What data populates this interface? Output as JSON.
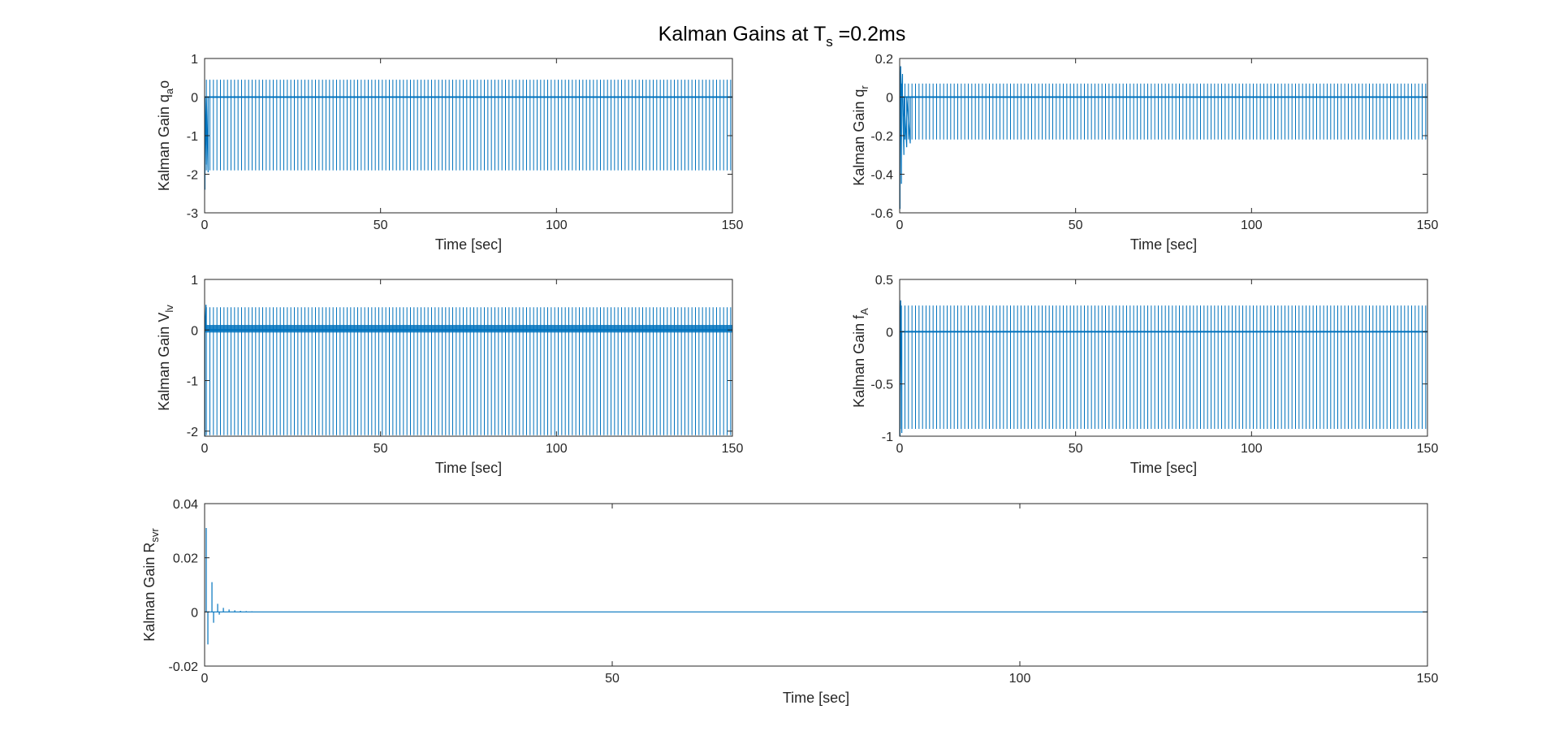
{
  "figure": {
    "title": {
      "main": "Kalman Gains at T",
      "sub": "s",
      "suffix": " =0.2ms"
    }
  },
  "chart_data": [
    {
      "type": "line",
      "title": "",
      "xlabel": "Time [sec]",
      "ylabel": {
        "main": "Kalman Gain q",
        "sub": "a",
        "suffix": "o"
      },
      "xlim": [
        0,
        150
      ],
      "ylim": [
        -3,
        1
      ],
      "xticks": [
        0,
        50,
        100,
        150
      ],
      "yticks": [
        -3,
        -2,
        -1,
        0,
        1
      ],
      "grid": false,
      "series": [
        {
          "color": "#0072BD",
          "pattern": "periodic-spikes",
          "x_start": 0,
          "x_end": 150,
          "spike_count": 150,
          "baseline": 0,
          "spike_high": 0.45,
          "spike_low": -1.9,
          "initial_transient": [
            {
              "x": 0.1,
              "y": -2.4
            },
            {
              "x": 0.5,
              "y": -1.75
            },
            {
              "x": 1.0,
              "y": -1.95
            }
          ]
        }
      ]
    },
    {
      "type": "line",
      "title": "",
      "xlabel": "Time [sec]",
      "ylabel": {
        "main": "Kalman Gain q",
        "sub": "r",
        "suffix": ""
      },
      "xlim": [
        0,
        150
      ],
      "ylim": [
        -0.6,
        0.2
      ],
      "xticks": [
        0,
        50,
        100,
        150
      ],
      "yticks": [
        -0.6,
        -0.4,
        -0.2,
        0,
        0.2
      ],
      "grid": false,
      "series": [
        {
          "color": "#0072BD",
          "pattern": "periodic-spikes",
          "x_start": 0,
          "x_end": 150,
          "spike_count": 150,
          "baseline": 0,
          "spike_high": 0.07,
          "spike_low": -0.22,
          "initial_transient": [
            {
              "x": 0.1,
              "y": -0.58
            },
            {
              "x": 0.3,
              "y": 0.16
            },
            {
              "x": 0.5,
              "y": -0.45
            },
            {
              "x": 0.8,
              "y": 0.12
            },
            {
              "x": 1.2,
              "y": -0.3
            },
            {
              "x": 2.0,
              "y": -0.26
            },
            {
              "x": 3.0,
              "y": -0.24
            }
          ]
        }
      ]
    },
    {
      "type": "line",
      "title": "",
      "xlabel": "Time [sec]",
      "ylabel": {
        "main": "Kalman Gain V",
        "sub": "lv",
        "suffix": ""
      },
      "xlim": [
        0,
        150
      ],
      "ylim": [
        -2.1,
        1
      ],
      "xticks": [
        0,
        50,
        100,
        150
      ],
      "yticks": [
        -2,
        -1,
        0,
        1
      ],
      "grid": false,
      "series": [
        {
          "color": "#0072BD",
          "pattern": "periodic-spikes",
          "x_start": 0,
          "x_end": 150,
          "spike_count": 150,
          "baseline": 0,
          "spike_high": 0.45,
          "spike_low": -2.08,
          "baseline_band": [
            -0.05,
            0.1
          ],
          "initial_transient": [
            {
              "x": 0.1,
              "y": -2.1
            },
            {
              "x": 0.4,
              "y": 0.5
            }
          ]
        }
      ]
    },
    {
      "type": "line",
      "title": "",
      "xlabel": "Time [sec]",
      "ylabel": {
        "main": "Kalman Gain f",
        "sub": "A",
        "suffix": ""
      },
      "xlim": [
        0,
        150
      ],
      "ylim": [
        -1,
        0.5
      ],
      "xticks": [
        0,
        50,
        100,
        150
      ],
      "yticks": [
        -1,
        -0.5,
        0,
        0.5
      ],
      "grid": false,
      "series": [
        {
          "color": "#0072BD",
          "pattern": "periodic-spikes",
          "x_start": 0,
          "x_end": 150,
          "spike_count": 150,
          "baseline": 0,
          "spike_high": 0.25,
          "spike_low": -0.93,
          "initial_transient": [
            {
              "x": 0.1,
              "y": -1.0
            },
            {
              "x": 0.3,
              "y": 0.3
            },
            {
              "x": 0.6,
              "y": -0.97
            }
          ]
        }
      ]
    },
    {
      "type": "line",
      "title": "",
      "xlabel": "Time [sec]",
      "ylabel": {
        "main": "Kalman Gain R",
        "sub": "svr",
        "suffix": ""
      },
      "xlim": [
        0,
        150
      ],
      "ylim": [
        -0.02,
        0.04
      ],
      "xticks": [
        0,
        50,
        100,
        150
      ],
      "yticks": [
        -0.02,
        0,
        0.02,
        0.04
      ],
      "grid": false,
      "series": [
        {
          "color": "#0072BD",
          "pattern": "decaying-oscillation",
          "baseline": 0,
          "points": [
            {
              "x": 0.2,
              "y": 0.031
            },
            {
              "x": 0.4,
              "y": -0.012
            },
            {
              "x": 0.9,
              "y": 0.011
            },
            {
              "x": 1.1,
              "y": -0.004
            },
            {
              "x": 1.6,
              "y": 0.003
            },
            {
              "x": 1.8,
              "y": -0.001
            },
            {
              "x": 2.3,
              "y": 0.0015
            },
            {
              "x": 3.0,
              "y": 0.0009
            },
            {
              "x": 3.7,
              "y": 0.0006
            },
            {
              "x": 4.4,
              "y": 0.0004
            },
            {
              "x": 5.1,
              "y": 0.0003
            },
            {
              "x": 5.8,
              "y": 0.0002
            },
            {
              "x": 6.5,
              "y": 0.0001
            },
            {
              "x": 7.2,
              "y": 0.0001
            }
          ]
        }
      ]
    }
  ]
}
